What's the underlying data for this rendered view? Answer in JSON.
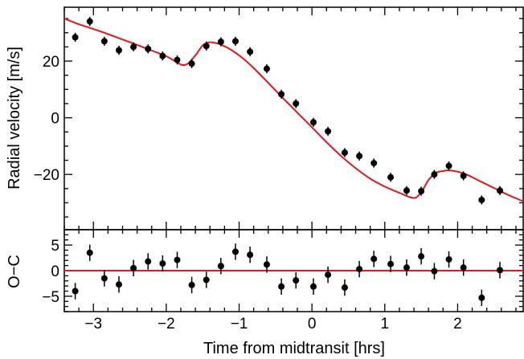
{
  "chart_data": [
    {
      "type": "scatter",
      "panel": "top",
      "ylabel": "Radial velocity [m/s]",
      "xlim": [
        -3.4,
        2.9
      ],
      "ylim": [
        -39.5,
        39
      ],
      "xticks": [
        -3,
        -2,
        -1,
        0,
        1,
        2
      ],
      "xtick_labels": [
        "−3",
        "−2",
        "−1",
        "0",
        "1",
        "2"
      ],
      "yticks": [
        -20,
        0,
        20
      ],
      "ytick_labels": [
        "−20",
        "0",
        "20"
      ],
      "grid": false,
      "model": {
        "color": "#e8141c",
        "x": [
          -3.4,
          -3.2,
          -3.0,
          -2.8,
          -2.6,
          -2.4,
          -2.2,
          -2.0,
          -1.85,
          -1.78,
          -1.7,
          -1.6,
          -1.5,
          -1.42,
          -1.35,
          -1.25,
          -1.1,
          -0.95,
          -0.8,
          -0.6,
          -0.4,
          -0.2,
          0.0,
          0.2,
          0.4,
          0.6,
          0.8,
          1.0,
          1.2,
          1.32,
          1.4,
          1.45,
          1.52,
          1.6,
          1.7,
          1.8,
          1.9,
          2.1,
          2.3,
          2.5,
          2.7,
          2.9
        ],
        "y": [
          35,
          33,
          31.3,
          29.5,
          27.6,
          25.7,
          23.7,
          21.7,
          19.5,
          18.6,
          19.2,
          22,
          25.5,
          26.6,
          26.5,
          25.8,
          23.8,
          21,
          17.5,
          12.3,
          7.0,
          1.8,
          -3.4,
          -8.6,
          -13.5,
          -17.8,
          -21.5,
          -24.3,
          -26.5,
          -27.8,
          -28.3,
          -27.8,
          -25.5,
          -22,
          -19.5,
          -18.8,
          -18.6,
          -19.8,
          -22.3,
          -24.8,
          -27.3,
          -29.5
        ]
      },
      "points": {
        "x": [
          -3.25,
          -3.05,
          -2.85,
          -2.65,
          -2.45,
          -2.25,
          -2.05,
          -1.85,
          -1.65,
          -1.45,
          -1.25,
          -1.05,
          -0.85,
          -0.62,
          -0.42,
          -0.22,
          0.02,
          0.22,
          0.45,
          0.65,
          0.85,
          1.08,
          1.3,
          1.5,
          1.68,
          1.88,
          2.08,
          2.33,
          2.58
        ],
        "y": [
          28.4,
          34,
          27,
          23.8,
          25,
          24.3,
          21.8,
          20.4,
          19.1,
          25.3,
          26.8,
          27,
          23.3,
          17.3,
          8.3,
          5,
          -1.6,
          -4.8,
          -12.3,
          -13.5,
          -16,
          -21,
          -25.7,
          -25.9,
          -20,
          -17,
          -20.5,
          -29,
          -25.7
        ],
        "error": [
          1.6,
          1.6,
          1.6,
          1.6,
          1.6,
          1.6,
          1.6,
          1.6,
          1.6,
          1.6,
          1.6,
          1.6,
          1.6,
          1.6,
          1.6,
          1.6,
          1.6,
          1.6,
          1.6,
          1.6,
          1.6,
          1.6,
          1.6,
          1.6,
          1.6,
          1.6,
          1.6,
          1.6,
          1.6
        ]
      }
    },
    {
      "type": "scatter",
      "panel": "bottom",
      "xlabel": "Time from midtransit [hrs]",
      "ylabel": "O−C",
      "xlim": [
        -3.4,
        2.9
      ],
      "ylim": [
        -8,
        8
      ],
      "xticks": [
        -3,
        -2,
        -1,
        0,
        1,
        2
      ],
      "xtick_labels": [
        "−3",
        "−2",
        "−1",
        "0",
        "1",
        "2"
      ],
      "yticks": [
        -5,
        0,
        5
      ],
      "ytick_labels": [
        "−5",
        "0",
        "5"
      ],
      "grid": false,
      "zero_line_color": "#e8141c",
      "points": {
        "x": [
          -3.25,
          -3.05,
          -2.85,
          -2.65,
          -2.45,
          -2.25,
          -2.05,
          -1.85,
          -1.65,
          -1.45,
          -1.25,
          -1.05,
          -0.85,
          -0.62,
          -0.42,
          -0.22,
          0.02,
          0.22,
          0.45,
          0.65,
          0.85,
          1.08,
          1.3,
          1.5,
          1.68,
          1.88,
          2.08,
          2.33,
          2.58
        ],
        "y": [
          -4,
          3.5,
          -1.5,
          -2.7,
          0.5,
          1.8,
          1.4,
          2.1,
          -2.8,
          -1.8,
          0.9,
          3.7,
          3.1,
          1.2,
          -3.1,
          -1.9,
          -3.1,
          -0.8,
          -3.3,
          0.3,
          2.3,
          1.3,
          0.6,
          2.8,
          -0.1,
          2.2,
          0.6,
          -5.3,
          0.1
        ]
      }
    }
  ]
}
